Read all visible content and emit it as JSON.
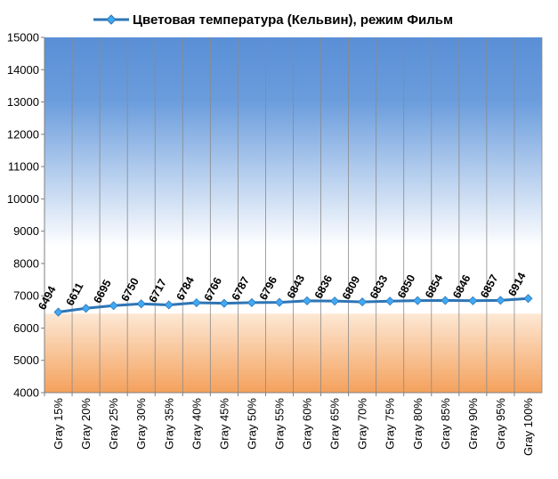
{
  "chart_data": {
    "type": "line",
    "title": "Цветовая температура (Кельвин), режим Фильм",
    "categories": [
      "Gray 15%",
      "Gray 20%",
      "Gray 25%",
      "Gray 30%",
      "Gray 35%",
      "Gray 40%",
      "Gray 45%",
      "Gray 50%",
      "Gray 55%",
      "Gray 60%",
      "Gray 65%",
      "Gray 70%",
      "Gray 75%",
      "Gray 80%",
      "Gray 85%",
      "Gray 90%",
      "Gray 95%",
      "Gray 100%"
    ],
    "series": [
      {
        "name": "Цветовая температура (Кельвин), режим Фильм",
        "values": [
          6494,
          6611,
          6695,
          6750,
          6717,
          6784,
          6766,
          6787,
          6796,
          6843,
          6836,
          6809,
          6833,
          6850,
          6854,
          6846,
          6857,
          6914
        ],
        "color": "#2e75b6",
        "marker_color": "#3fa9f5"
      }
    ],
    "ylim": [
      4000,
      15000
    ],
    "yticks": [
      4000,
      5000,
      6000,
      7000,
      8000,
      9000,
      10000,
      11000,
      12000,
      13000,
      14000,
      15000
    ],
    "legend_position": "top",
    "data_labels": true,
    "grid": "vertical",
    "background_bands": {
      "top_color": "#5a8fd6",
      "mid_color": "#ffffff",
      "bottom_color": "#f4a15c"
    }
  }
}
